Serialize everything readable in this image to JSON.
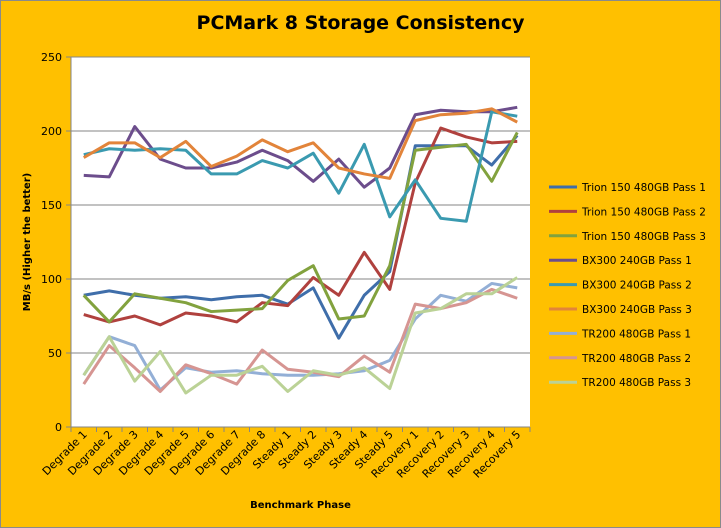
{
  "chart_data": {
    "type": "line",
    "title": "PCMark 8 Storage Consistency",
    "xlabel": "Benchmark Phase",
    "ylabel": "MB/s (Higher the better)",
    "ylim": [
      0,
      250
    ],
    "yticks": [
      0,
      50,
      100,
      150,
      200,
      250
    ],
    "grid": true,
    "legend_position": "right",
    "categories": [
      "Degrade 1",
      "Degrade 2",
      "Degrade 3",
      "Degrade 4",
      "Degrade 5",
      "Degrade 6",
      "Degrade 7",
      "Degrade 8",
      "Steady 1",
      "Steady 2",
      "Steady 3",
      "Steady 4",
      "Steady 5",
      "Recovery 1",
      "Recovery 2",
      "Recovery 3",
      "Recovery 4",
      "Recovery 5"
    ],
    "series": [
      {
        "name": "Trion 150 480GB Pass 1",
        "color": "#3F6EAA",
        "values": [
          89,
          92,
          89,
          87,
          88,
          86,
          88,
          89,
          83,
          94,
          60,
          89,
          105,
          190,
          190,
          190,
          177,
          197
        ]
      },
      {
        "name": "Trion 150 480GB Pass 2",
        "color": "#B0413E",
        "values": [
          76,
          71,
          75,
          69,
          77,
          75,
          71,
          84,
          82,
          101,
          89,
          118,
          93,
          165,
          202,
          196,
          192,
          193
        ]
      },
      {
        "name": "Trion 150 480GB Pass 3",
        "color": "#82A23E",
        "values": [
          89,
          71,
          90,
          87,
          84,
          78,
          79,
          80,
          99,
          109,
          73,
          75,
          109,
          187,
          189,
          191,
          166,
          199
        ]
      },
      {
        "name": "BX300 240GB Pass 1",
        "color": "#6C4D8C",
        "values": [
          170,
          169,
          203,
          181,
          175,
          175,
          179,
          187,
          180,
          166,
          181,
          162,
          175,
          211,
          214,
          213,
          213,
          216
        ]
      },
      {
        "name": "BX300 240GB Pass 2",
        "color": "#3A9AB0",
        "values": [
          184,
          188,
          187,
          188,
          187,
          171,
          171,
          180,
          175,
          185,
          158,
          191,
          142,
          167,
          141,
          139,
          213,
          210
        ]
      },
      {
        "name": "BX300 240GB Pass 3",
        "color": "#E2843A",
        "values": [
          182,
          192,
          192,
          182,
          193,
          176,
          183,
          194,
          186,
          192,
          175,
          171,
          168,
          207,
          211,
          212,
          215,
          206
        ]
      },
      {
        "name": "TR200 480GB Pass 1",
        "color": "#93AFD6",
        "values": [
          35,
          61,
          55,
          25,
          40,
          37,
          38,
          36,
          35,
          35,
          36,
          38,
          45,
          73,
          89,
          85,
          97,
          94
        ]
      },
      {
        "name": "TR200 480GB Pass 2",
        "color": "#D69592",
        "values": [
          29,
          55,
          40,
          24,
          42,
          36,
          29,
          52,
          39,
          37,
          34,
          48,
          37,
          83,
          80,
          84,
          93,
          87
        ]
      },
      {
        "name": "TR200 480GB Pass 3",
        "color": "#BBD296",
        "values": [
          35,
          61,
          31,
          51,
          23,
          35,
          35,
          41,
          24,
          38,
          35,
          40,
          26,
          77,
          80,
          90,
          90,
          101
        ]
      }
    ]
  }
}
